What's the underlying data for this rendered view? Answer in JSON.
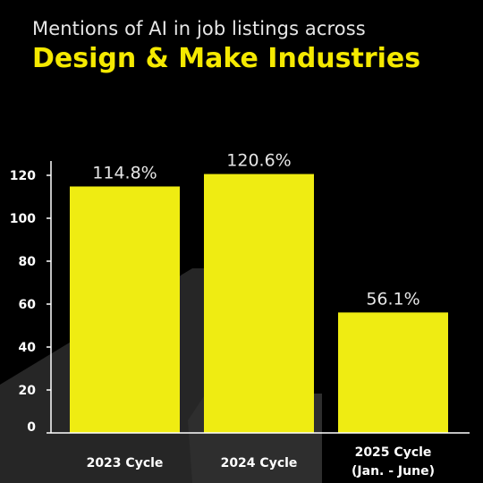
{
  "header": {
    "subtitle": "Mentions of AI in job listings across",
    "title": "Design & Make Industries"
  },
  "colors": {
    "background": "#000000",
    "accent": "#f5e900",
    "bar": "#efec12",
    "text": "#ffffff",
    "decor": "#2a2a2a"
  },
  "chart_data": {
    "type": "bar",
    "categories": [
      [
        "2023 Cycle"
      ],
      [
        "2024 Cycle"
      ],
      [
        "2025 Cycle",
        "(Jan. - June)"
      ]
    ],
    "values": [
      114.8,
      120.6,
      56.1
    ],
    "data_labels": [
      "114.8%",
      "120.6%",
      "56.1%"
    ],
    "yticks": [
      0,
      20,
      40,
      60,
      80,
      100,
      120
    ],
    "ylim": [
      0,
      125
    ],
    "title": "Design & Make Industries",
    "subtitle": "Mentions of AI in job listings across",
    "xlabel": "",
    "ylabel": "",
    "grid": false,
    "legend": "none"
  }
}
